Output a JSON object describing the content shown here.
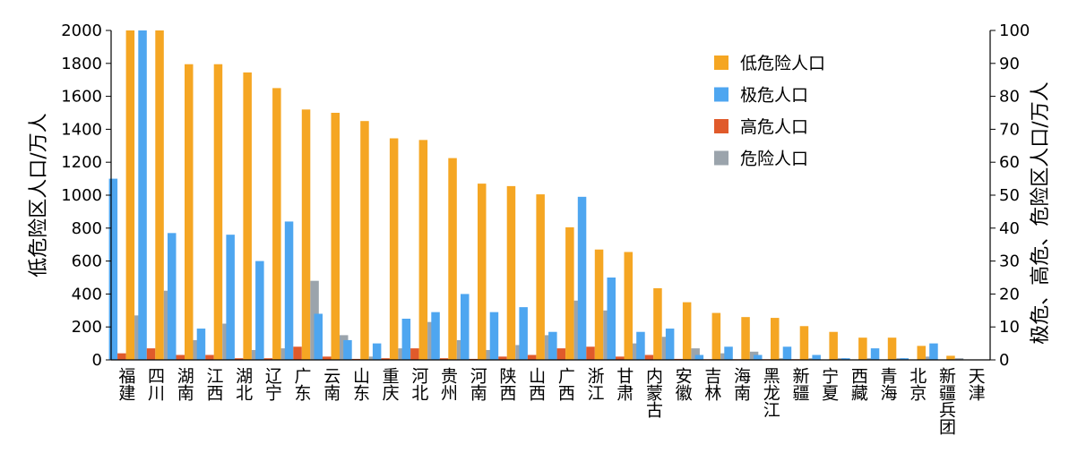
{
  "chart_data": {
    "type": "bar",
    "ylabel": "低危险区人口/万人",
    "y2label": "极危、高危、危险区人口/万人",
    "ylim": [
      0,
      2000
    ],
    "y2lim": [
      0,
      100
    ],
    "yticks": [
      "0",
      "200",
      "400",
      "600",
      "800",
      "1000",
      "1200",
      "1400",
      "1600",
      "1800",
      "2000"
    ],
    "y2ticks": [
      "0",
      "10",
      "20",
      "30",
      "40",
      "50",
      "60",
      "70",
      "80",
      "90",
      "100"
    ],
    "legend_position": "top-right",
    "grid": false,
    "categories": [
      "福建",
      "四川",
      "湖南",
      "江西",
      "湖北",
      "辽宁",
      "广东",
      "云南",
      "山东",
      "重庆",
      "河北",
      "贵州",
      "河南",
      "陕西",
      "山西",
      "广西",
      "浙江",
      "甘肃",
      "内蒙古",
      "安徽",
      "吉林",
      "海南",
      "黑龙江",
      "新疆",
      "宁夏",
      "西藏",
      "青海",
      "北京",
      "新疆兵团",
      "天津"
    ],
    "series": [
      {
        "name": "低危险人口",
        "axis": "left",
        "color": "#F5A623",
        "values": [
          2010,
          2000,
          1795,
          1795,
          1745,
          1650,
          1520,
          1500,
          1450,
          1345,
          1335,
          1225,
          1070,
          1055,
          1005,
          805,
          670,
          655,
          435,
          350,
          285,
          260,
          255,
          205,
          170,
          135,
          135,
          85,
          25,
          0
        ]
      },
      {
        "name": "极危人口",
        "axis": "right",
        "color": "#4EA6F0",
        "values": [
          55,
          100,
          38.5,
          9.5,
          38,
          30,
          42,
          14,
          6,
          5,
          12.5,
          14.5,
          20,
          14.5,
          16,
          8.5,
          49.5,
          25,
          8.5,
          9.5,
          1.5,
          4,
          1.5,
          4,
          1.5,
          0.5,
          3.5,
          0.5,
          5,
          0
        ]
      },
      {
        "name": "高危人口",
        "axis": "right",
        "color": "#E05A2B",
        "values": [
          2,
          3.5,
          1.5,
          1.5,
          0.5,
          0.5,
          4,
          1,
          0.3,
          0.5,
          3.5,
          0.5,
          0.3,
          1,
          1.5,
          3.5,
          4,
          1,
          1.5,
          0.3,
          0.2,
          0.2,
          0.2,
          0.2,
          0.1,
          0.1,
          0.1,
          0.1,
          0.1,
          0
        ]
      },
      {
        "name": "危险人口",
        "axis": "right",
        "color": "#9BA4AC",
        "values": [
          13.5,
          21,
          6,
          11,
          3,
          3.5,
          24,
          7.5,
          1,
          3.5,
          11.5,
          6,
          3,
          4.5,
          7.5,
          18,
          15,
          5,
          7,
          3.5,
          2,
          2.5,
          0.5,
          0.5,
          0.5,
          0.5,
          0.5,
          1,
          0.5,
          0
        ]
      }
    ]
  }
}
